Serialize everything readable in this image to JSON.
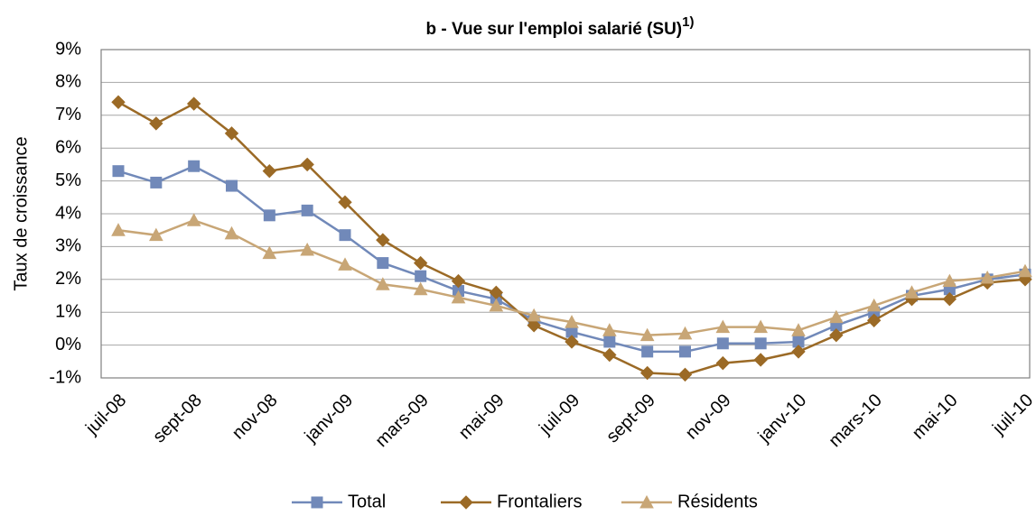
{
  "chart_data": {
    "type": "line",
    "title": "b - Vue sur l'emploi salarié (SU)",
    "title_superscript": "1)",
    "y_label": "Taux de croissance",
    "categories": [
      "juil-08",
      null,
      "sept-08",
      null,
      "nov-08",
      null,
      "janv-09",
      null,
      "mars-09",
      null,
      "mai-09",
      null,
      "juil-09",
      null,
      "sept-09",
      null,
      "nov-09",
      null,
      "janv-10",
      null,
      "mars-10",
      null,
      "mai-10",
      null,
      "juil-10"
    ],
    "series": [
      {
        "name": "Total",
        "color": "#7189b9",
        "marker": "square",
        "values": [
          5.3,
          4.95,
          5.45,
          4.85,
          3.95,
          4.1,
          3.35,
          2.5,
          2.1,
          1.65,
          1.4,
          0.75,
          0.4,
          0.1,
          -0.2,
          -0.2,
          0.05,
          0.05,
          0.1,
          0.6,
          1.0,
          1.5,
          1.7,
          2.0,
          2.15
        ]
      },
      {
        "name": "Frontaliers",
        "color": "#9b6a26",
        "marker": "diamond",
        "values": [
          7.4,
          6.75,
          7.35,
          6.45,
          5.3,
          5.5,
          4.35,
          3.2,
          2.5,
          1.95,
          1.6,
          0.6,
          0.1,
          -0.3,
          -0.85,
          -0.9,
          -0.55,
          -0.45,
          -0.2,
          0.3,
          0.75,
          1.4,
          1.4,
          1.9,
          2.0
        ]
      },
      {
        "name": "Résidents",
        "color": "#c8a676",
        "marker": "triangle",
        "values": [
          3.5,
          3.35,
          3.8,
          3.4,
          2.8,
          2.9,
          2.45,
          1.85,
          1.7,
          1.45,
          1.2,
          0.9,
          0.7,
          0.45,
          0.3,
          0.35,
          0.55,
          0.55,
          0.45,
          0.85,
          1.2,
          1.6,
          1.95,
          2.05,
          2.25
        ]
      }
    ],
    "ylim": [
      -1,
      9
    ],
    "yticks": [
      {
        "value": -1,
        "label": "-1%"
      },
      {
        "value": 0,
        "label": "0%"
      },
      {
        "value": 1,
        "label": "1%"
      },
      {
        "value": 2,
        "label": "2%"
      },
      {
        "value": 3,
        "label": "3%"
      },
      {
        "value": 4,
        "label": "4%"
      },
      {
        "value": 5,
        "label": "5%"
      },
      {
        "value": 6,
        "label": "6%"
      },
      {
        "value": 7,
        "label": "7%"
      },
      {
        "value": 8,
        "label": "8%"
      },
      {
        "value": 9,
        "label": "9%"
      }
    ],
    "grid": true,
    "legend": "bottom"
  }
}
